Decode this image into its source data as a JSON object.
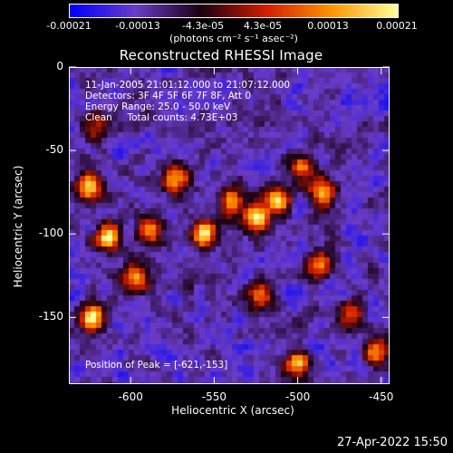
{
  "colorbar": {
    "ticks": [
      "-0.00021",
      "-0.00013",
      "-4.3e-05",
      "4.3e-05",
      "0.00013",
      "0.00021"
    ],
    "unit_label": "(photons cm⁻² s⁻¹ asec⁻²)"
  },
  "chart_data": {
    "type": "heatmap",
    "title": "Reconstructed RHESSI Image",
    "xlabel": "Heliocentric X (arcsec)",
    "ylabel": "Heliocentric Y (arcsec)",
    "xlim": [
      -637,
      -445
    ],
    "ylim": [
      -190,
      0
    ],
    "x_ticks": [
      "-600",
      "-550",
      "-500",
      "-450"
    ],
    "y_ticks": [
      "0",
      "-50",
      "-100",
      "-150"
    ],
    "value_range": [
      -0.00021,
      0.00021
    ],
    "peak": [
      -621,
      -153
    ],
    "bright_sources": [
      {
        "x": -625,
        "y": -72,
        "level": 0.85
      },
      {
        "x": -614,
        "y": -102,
        "level": 0.92
      },
      {
        "x": -623,
        "y": -150,
        "level": 1.0
      },
      {
        "x": -596,
        "y": -127,
        "level": 0.75
      },
      {
        "x": -588,
        "y": -98,
        "level": 0.8
      },
      {
        "x": -573,
        "y": -67,
        "level": 0.7
      },
      {
        "x": -556,
        "y": -100,
        "level": 0.9
      },
      {
        "x": -540,
        "y": -80,
        "level": 0.7
      },
      {
        "x": -525,
        "y": -90,
        "level": 0.95
      },
      {
        "x": -512,
        "y": -80,
        "level": 0.85
      },
      {
        "x": -497,
        "y": -60,
        "level": 0.65
      },
      {
        "x": -485,
        "y": -75,
        "level": 0.8
      },
      {
        "x": -487,
        "y": -118,
        "level": 0.7
      },
      {
        "x": -522,
        "y": -137,
        "level": 0.6
      },
      {
        "x": -468,
        "y": -150,
        "level": 0.55
      },
      {
        "x": -453,
        "y": -170,
        "level": 0.7
      },
      {
        "x": -500,
        "y": -178,
        "level": 0.85
      },
      {
        "x": -620,
        "y": -35,
        "level": 0.5
      }
    ],
    "colorscale": [
      "#0000ff",
      "#6a3cc8",
      "#1a0010",
      "#d21e00",
      "#ff9600",
      "#ffff9a"
    ]
  },
  "annotations": {
    "time_range": "11-Jan-2005 21:01:12.000 to 21:07:12.000",
    "detectors": "Detectors: 3F 4F 5F 6F 7F 8F, Att 0",
    "energy": "Energy Range: 25.0 - 50.0 keV",
    "clean": "Clean     Total counts: 4.73E+03",
    "peak_text": "Position of Peak = [-621,-153]"
  },
  "datestamp": "27-Apr-2022 15:50"
}
